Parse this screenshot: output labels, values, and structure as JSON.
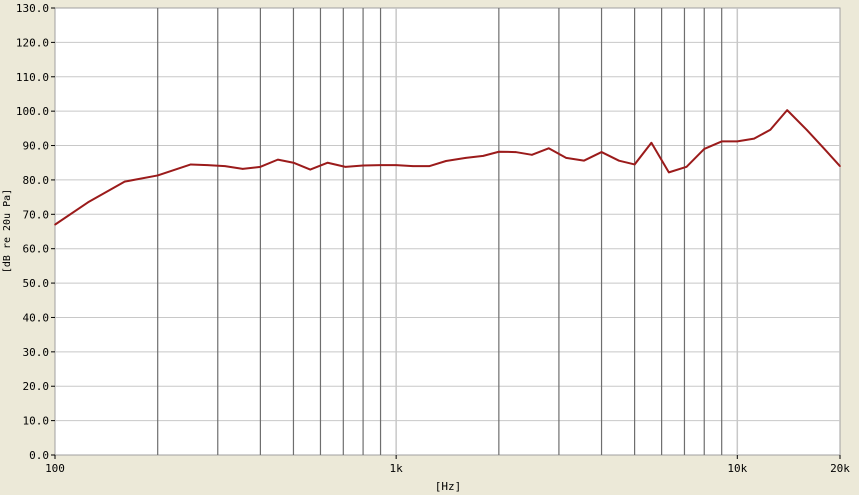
{
  "chart_data": {
    "type": "line",
    "title": "",
    "xlabel": "[Hz]",
    "ylabel": "[dB re 20u Pa]",
    "xscale": "log",
    "xlim": [
      100,
      20000
    ],
    "ylim": [
      0,
      130
    ],
    "grid": true,
    "x_tick_labels": [
      {
        "value": 100,
        "label": "100"
      },
      {
        "value": 1000,
        "label": "1k"
      },
      {
        "value": 10000,
        "label": "10k"
      },
      {
        "value": 20000,
        "label": "20k"
      }
    ],
    "y_ticks": [
      0,
      10,
      20,
      30,
      40,
      50,
      60,
      70,
      80,
      90,
      100,
      110,
      120,
      130
    ],
    "y_tick_labels": [
      "0.0",
      "10.0",
      "20.0",
      "30.0",
      "40.0",
      "50.0",
      "60.0",
      "70.0",
      "80.0",
      "90.0",
      "100.0",
      "110.0",
      "120.0",
      "130.0"
    ],
    "vertical_gridlines": [
      200,
      300,
      400,
      500,
      600,
      700,
      800,
      900,
      1000,
      2000,
      3000,
      4000,
      5000,
      6000,
      7000,
      8000,
      9000,
      10000
    ],
    "series": [
      {
        "color": "#9B1B1B",
        "x": [
          100,
          125,
          160,
          200,
          250,
          280,
          315,
          355,
          400,
          450,
          500,
          560,
          630,
          710,
          800,
          900,
          1000,
          1120,
          1250,
          1400,
          1600,
          1800,
          2000,
          2240,
          2500,
          2800,
          3150,
          3550,
          4000,
          4500,
          5000,
          5600,
          6300,
          7100,
          8000,
          9000,
          10000,
          11200,
          12500,
          14000,
          16000,
          18000,
          20000
        ],
        "y": [
          67,
          73.5,
          79.5,
          81.3,
          84.5,
          84.3,
          84,
          83.2,
          83.8,
          85.9,
          85,
          83,
          85,
          83.8,
          84.2,
          84.3,
          84.3,
          84,
          84,
          85.5,
          86.4,
          87,
          88.2,
          88.1,
          87.3,
          89.2,
          86.4,
          85.6,
          88.1,
          85.6,
          84.5,
          90.8,
          82.2,
          83.8,
          89,
          91.2,
          91.2,
          92,
          94.6,
          100.3,
          94.5,
          89,
          84
        ]
      }
    ]
  }
}
